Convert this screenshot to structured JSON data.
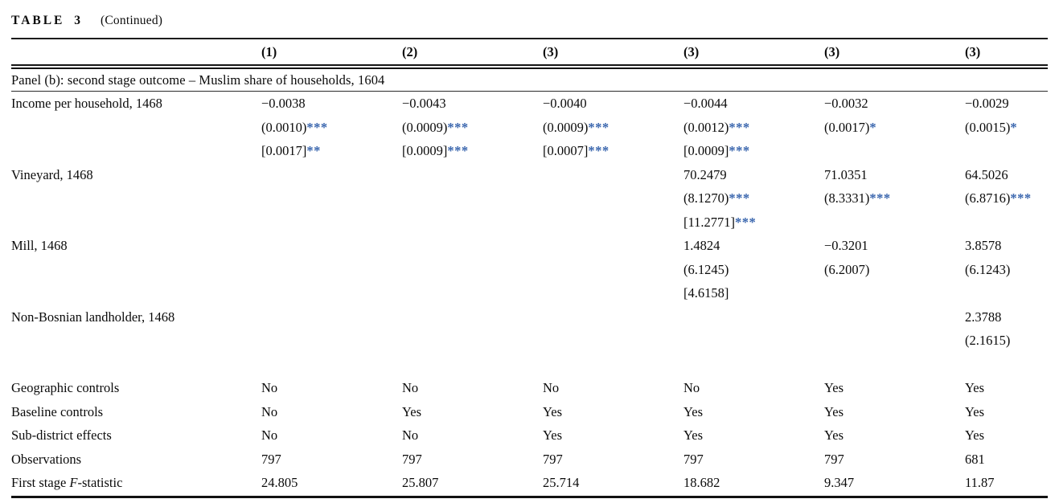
{
  "title": {
    "label": "TABLE 3",
    "continued": "(Continued)"
  },
  "columns": [
    "(1)",
    "(2)",
    "(3)",
    "(3)",
    "(3)",
    "(3)"
  ],
  "panel_heading": "Panel (b): second stage outcome – Muslim share of households, 1604",
  "colors": {
    "star": "#3a66ae",
    "text": "#0b0b0b",
    "rule": "#1c1c1c"
  },
  "rows": [
    {
      "label": "Income per household, 1468",
      "cells": [
        "−0.0038",
        "−0.0043",
        "−0.0040",
        "−0.0044",
        "−0.0032",
        "−0.0029"
      ]
    },
    {
      "label": "",
      "cells": [
        {
          "v": "(0.0010)",
          "s": "***"
        },
        {
          "v": "(0.0009)",
          "s": "***"
        },
        {
          "v": "(0.0009)",
          "s": "***"
        },
        {
          "v": "(0.0012)",
          "s": "***"
        },
        {
          "v": "(0.0017)",
          "s": "*"
        },
        {
          "v": "(0.0015)",
          "s": "*"
        }
      ]
    },
    {
      "label": "",
      "cells": [
        {
          "v": "[0.0017]",
          "s": "**"
        },
        {
          "v": "[0.0009]",
          "s": "***"
        },
        {
          "v": "[0.0007]",
          "s": "***"
        },
        {
          "v": "[0.0009]",
          "s": "***"
        },
        null,
        null
      ]
    },
    {
      "label": "Vineyard, 1468",
      "cells": [
        null,
        null,
        null,
        "70.2479",
        "71.0351",
        "64.5026"
      ]
    },
    {
      "label": "",
      "cells": [
        null,
        null,
        null,
        {
          "v": "(8.1270)",
          "s": "***"
        },
        {
          "v": "(8.3331)",
          "s": "***"
        },
        {
          "v": "(6.8716)",
          "s": "***"
        }
      ]
    },
    {
      "label": "",
      "cells": [
        null,
        null,
        null,
        {
          "v": "[11.2771]",
          "s": "***"
        },
        null,
        null
      ]
    },
    {
      "label": "Mill, 1468",
      "cells": [
        null,
        null,
        null,
        "1.4824",
        "−0.3201",
        "3.8578"
      ]
    },
    {
      "label": "",
      "cells": [
        null,
        null,
        null,
        "(6.1245)",
        "(6.2007)",
        "(6.1243)"
      ]
    },
    {
      "label": "",
      "cells": [
        null,
        null,
        null,
        "[4.6158]",
        null,
        null
      ]
    },
    {
      "label": "Non-Bosnian landholder, 1468",
      "cells": [
        null,
        null,
        null,
        null,
        null,
        "2.3788"
      ]
    },
    {
      "label": "",
      "cells": [
        null,
        null,
        null,
        null,
        null,
        "(2.1615)"
      ]
    },
    {
      "label": "",
      "cells": [
        null,
        null,
        null,
        null,
        null,
        null
      ]
    },
    {
      "label": "Geographic controls",
      "cells": [
        "No",
        "No",
        "No",
        "No",
        "Yes",
        "Yes"
      ]
    },
    {
      "label": "Baseline controls",
      "cells": [
        "No",
        "Yes",
        "Yes",
        "Yes",
        "Yes",
        "Yes"
      ]
    },
    {
      "label": "Sub-district effects",
      "cells": [
        "No",
        "No",
        "Yes",
        "Yes",
        "Yes",
        "Yes"
      ]
    },
    {
      "label": "Observations",
      "cells": [
        "797",
        "797",
        "797",
        "797",
        "797",
        "681"
      ]
    },
    {
      "label": [
        {
          "t": "First stage "
        },
        {
          "t": "F",
          "i": true
        },
        {
          "t": "-statistic"
        }
      ],
      "cells": [
        "24.805",
        "25.807",
        "25.714",
        "18.682",
        "9.347",
        "11.87"
      ]
    }
  ]
}
